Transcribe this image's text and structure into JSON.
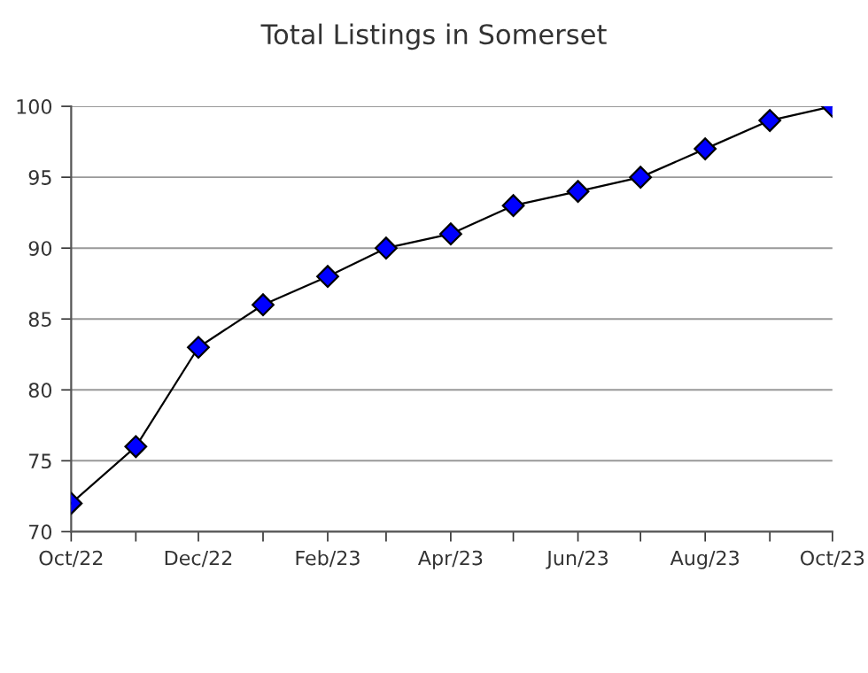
{
  "chart_data": {
    "type": "line",
    "title": "Total Listings in Somerset",
    "x": [
      "2022-10",
      "2022-11",
      "2022-12",
      "2023-01",
      "2023-02",
      "2023-03",
      "2023-04",
      "2023-05",
      "2023-06",
      "2023-07",
      "2023-08",
      "2023-09",
      "2023-10"
    ],
    "series": [
      {
        "color": "#0000ff",
        "values": [
          72,
          76,
          83,
          86,
          88,
          90,
          91,
          93,
          94,
          95,
          97,
          99,
          100
        ]
      }
    ],
    "xlim": [
      "2022-10",
      "2023-10"
    ],
    "xticks": [
      {
        "value": "2022-10",
        "label": "Oct/22"
      },
      {
        "value": "2022-11",
        "label": null
      },
      {
        "value": "2022-12",
        "label": "Dec/22"
      },
      {
        "value": "2023-01",
        "label": null
      },
      {
        "value": "2023-02",
        "label": "Feb/23"
      },
      {
        "value": "2023-03",
        "label": null
      },
      {
        "value": "2023-04",
        "label": "Apr/23"
      },
      {
        "value": "2023-05",
        "label": null
      },
      {
        "value": "2023-06",
        "label": "Jun/23"
      },
      {
        "value": "2023-07",
        "label": null
      },
      {
        "value": "2023-08",
        "label": "Aug/23"
      },
      {
        "value": "2023-09",
        "label": null
      },
      {
        "value": "2023-10",
        "label": "Oct/23"
      }
    ],
    "ylim": [
      70,
      100
    ],
    "yticks": [
      70,
      75,
      80,
      85,
      90,
      95,
      100
    ],
    "grid": "y",
    "marker": "diamond",
    "line_style": "solid",
    "legend": false
  }
}
